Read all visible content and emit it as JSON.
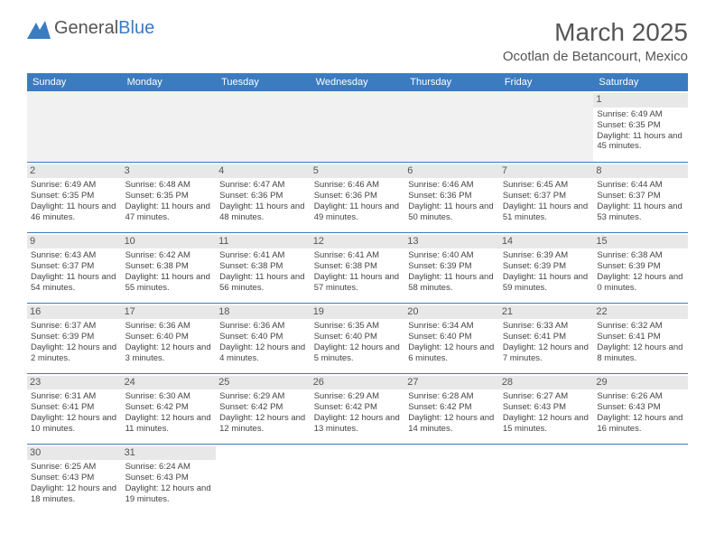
{
  "logo": {
    "text1": "General",
    "text2": "Blue"
  },
  "title": "March 2025",
  "location": "Ocotlan de Betancourt, Mexico",
  "colors": {
    "header_bg": "#3b7bc0",
    "empty_bg": "#f1f1f1",
    "daynum_bg": "#e8e8e8",
    "border": "#3b7bc0"
  },
  "dayHeaders": [
    "Sunday",
    "Monday",
    "Tuesday",
    "Wednesday",
    "Thursday",
    "Friday",
    "Saturday"
  ],
  "weeks": [
    [
      null,
      null,
      null,
      null,
      null,
      null,
      {
        "n": "1",
        "sr": "Sunrise: 6:49 AM",
        "ss": "Sunset: 6:35 PM",
        "dl": "Daylight: 11 hours and 45 minutes."
      }
    ],
    [
      {
        "n": "2",
        "sr": "Sunrise: 6:49 AM",
        "ss": "Sunset: 6:35 PM",
        "dl": "Daylight: 11 hours and 46 minutes."
      },
      {
        "n": "3",
        "sr": "Sunrise: 6:48 AM",
        "ss": "Sunset: 6:35 PM",
        "dl": "Daylight: 11 hours and 47 minutes."
      },
      {
        "n": "4",
        "sr": "Sunrise: 6:47 AM",
        "ss": "Sunset: 6:36 PM",
        "dl": "Daylight: 11 hours and 48 minutes."
      },
      {
        "n": "5",
        "sr": "Sunrise: 6:46 AM",
        "ss": "Sunset: 6:36 PM",
        "dl": "Daylight: 11 hours and 49 minutes."
      },
      {
        "n": "6",
        "sr": "Sunrise: 6:46 AM",
        "ss": "Sunset: 6:36 PM",
        "dl": "Daylight: 11 hours and 50 minutes."
      },
      {
        "n": "7",
        "sr": "Sunrise: 6:45 AM",
        "ss": "Sunset: 6:37 PM",
        "dl": "Daylight: 11 hours and 51 minutes."
      },
      {
        "n": "8",
        "sr": "Sunrise: 6:44 AM",
        "ss": "Sunset: 6:37 PM",
        "dl": "Daylight: 11 hours and 53 minutes."
      }
    ],
    [
      {
        "n": "9",
        "sr": "Sunrise: 6:43 AM",
        "ss": "Sunset: 6:37 PM",
        "dl": "Daylight: 11 hours and 54 minutes."
      },
      {
        "n": "10",
        "sr": "Sunrise: 6:42 AM",
        "ss": "Sunset: 6:38 PM",
        "dl": "Daylight: 11 hours and 55 minutes."
      },
      {
        "n": "11",
        "sr": "Sunrise: 6:41 AM",
        "ss": "Sunset: 6:38 PM",
        "dl": "Daylight: 11 hours and 56 minutes."
      },
      {
        "n": "12",
        "sr": "Sunrise: 6:41 AM",
        "ss": "Sunset: 6:38 PM",
        "dl": "Daylight: 11 hours and 57 minutes."
      },
      {
        "n": "13",
        "sr": "Sunrise: 6:40 AM",
        "ss": "Sunset: 6:39 PM",
        "dl": "Daylight: 11 hours and 58 minutes."
      },
      {
        "n": "14",
        "sr": "Sunrise: 6:39 AM",
        "ss": "Sunset: 6:39 PM",
        "dl": "Daylight: 11 hours and 59 minutes."
      },
      {
        "n": "15",
        "sr": "Sunrise: 6:38 AM",
        "ss": "Sunset: 6:39 PM",
        "dl": "Daylight: 12 hours and 0 minutes."
      }
    ],
    [
      {
        "n": "16",
        "sr": "Sunrise: 6:37 AM",
        "ss": "Sunset: 6:39 PM",
        "dl": "Daylight: 12 hours and 2 minutes."
      },
      {
        "n": "17",
        "sr": "Sunrise: 6:36 AM",
        "ss": "Sunset: 6:40 PM",
        "dl": "Daylight: 12 hours and 3 minutes."
      },
      {
        "n": "18",
        "sr": "Sunrise: 6:36 AM",
        "ss": "Sunset: 6:40 PM",
        "dl": "Daylight: 12 hours and 4 minutes."
      },
      {
        "n": "19",
        "sr": "Sunrise: 6:35 AM",
        "ss": "Sunset: 6:40 PM",
        "dl": "Daylight: 12 hours and 5 minutes."
      },
      {
        "n": "20",
        "sr": "Sunrise: 6:34 AM",
        "ss": "Sunset: 6:40 PM",
        "dl": "Daylight: 12 hours and 6 minutes."
      },
      {
        "n": "21",
        "sr": "Sunrise: 6:33 AM",
        "ss": "Sunset: 6:41 PM",
        "dl": "Daylight: 12 hours and 7 minutes."
      },
      {
        "n": "22",
        "sr": "Sunrise: 6:32 AM",
        "ss": "Sunset: 6:41 PM",
        "dl": "Daylight: 12 hours and 8 minutes."
      }
    ],
    [
      {
        "n": "23",
        "sr": "Sunrise: 6:31 AM",
        "ss": "Sunset: 6:41 PM",
        "dl": "Daylight: 12 hours and 10 minutes."
      },
      {
        "n": "24",
        "sr": "Sunrise: 6:30 AM",
        "ss": "Sunset: 6:42 PM",
        "dl": "Daylight: 12 hours and 11 minutes."
      },
      {
        "n": "25",
        "sr": "Sunrise: 6:29 AM",
        "ss": "Sunset: 6:42 PM",
        "dl": "Daylight: 12 hours and 12 minutes."
      },
      {
        "n": "26",
        "sr": "Sunrise: 6:29 AM",
        "ss": "Sunset: 6:42 PM",
        "dl": "Daylight: 12 hours and 13 minutes."
      },
      {
        "n": "27",
        "sr": "Sunrise: 6:28 AM",
        "ss": "Sunset: 6:42 PM",
        "dl": "Daylight: 12 hours and 14 minutes."
      },
      {
        "n": "28",
        "sr": "Sunrise: 6:27 AM",
        "ss": "Sunset: 6:43 PM",
        "dl": "Daylight: 12 hours and 15 minutes."
      },
      {
        "n": "29",
        "sr": "Sunrise: 6:26 AM",
        "ss": "Sunset: 6:43 PM",
        "dl": "Daylight: 12 hours and 16 minutes."
      }
    ],
    [
      {
        "n": "30",
        "sr": "Sunrise: 6:25 AM",
        "ss": "Sunset: 6:43 PM",
        "dl": "Daylight: 12 hours and 18 minutes."
      },
      {
        "n": "31",
        "sr": "Sunrise: 6:24 AM",
        "ss": "Sunset: 6:43 PM",
        "dl": "Daylight: 12 hours and 19 minutes."
      },
      null,
      null,
      null,
      null,
      null
    ]
  ]
}
